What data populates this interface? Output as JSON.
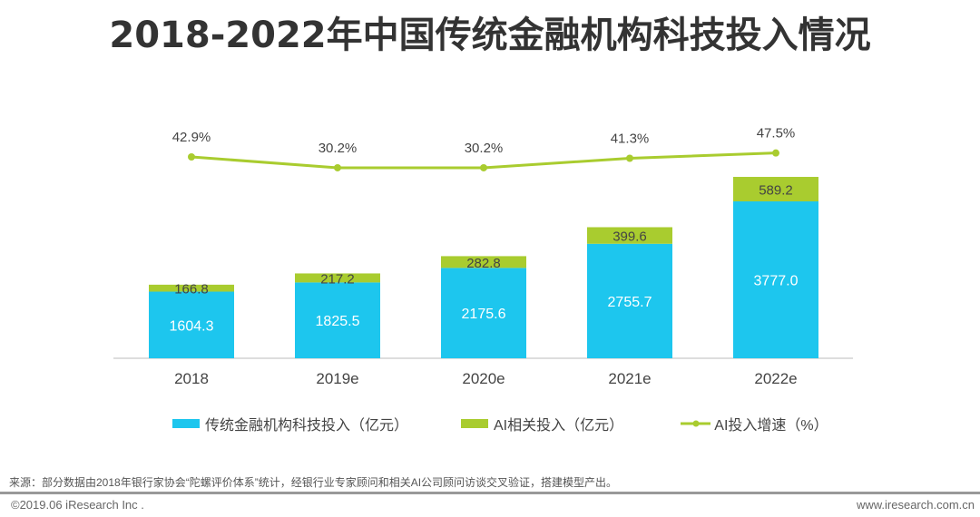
{
  "title": "2018-2022年中国传统金融机构科技投入情况",
  "chart_data": {
    "type": "bar",
    "stacked": true,
    "categories": [
      "2018",
      "2019e",
      "2020e",
      "2021e",
      "2022e"
    ],
    "series": [
      {
        "name": "传统金融机构科技投入（亿元）",
        "type": "bar",
        "color": "#1dc6ee",
        "values": [
          1604.3,
          1825.5,
          2175.6,
          2755.7,
          3777.0
        ],
        "labels": [
          "1604.3",
          "1825.5",
          "2175.6",
          "2755.7",
          "3777.0"
        ]
      },
      {
        "name": "AI相关投入（亿元）",
        "type": "bar",
        "color": "#a9cc2f",
        "values": [
          166.8,
          217.2,
          282.8,
          399.6,
          589.2
        ],
        "labels": [
          "166.8",
          "217.2",
          "282.8",
          "399.6",
          "589.2"
        ]
      },
      {
        "name": "AI投入增速（%）",
        "type": "line",
        "color": "#a9cc2f",
        "values": [
          42.9,
          30.2,
          30.2,
          41.3,
          47.5
        ],
        "labels": [
          "42.9%",
          "30.2%",
          "30.2%",
          "41.3%",
          "47.5%"
        ]
      }
    ],
    "grid": false,
    "legend": "bottom"
  },
  "source": "来源：部分数据由2018年银行家协会“陀螺评价体系”统计，经银行业专家顾问和相关AI公司顾问访谈交叉验证，搭建模型产出。",
  "copyright": "©2019.06 iResearch Inc .",
  "website": "www.iresearch.com.cn"
}
